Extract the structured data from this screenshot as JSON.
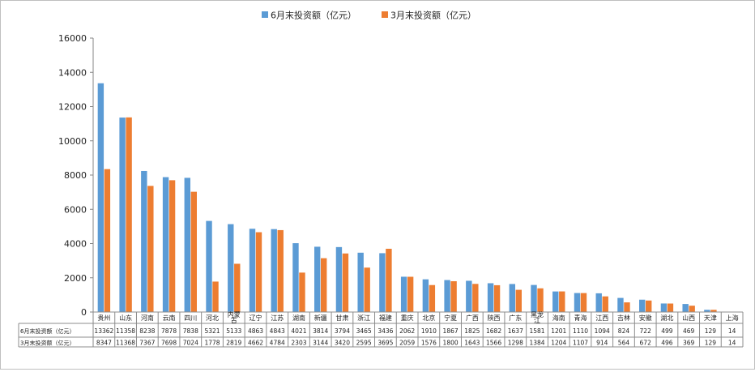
{
  "chart_data": {
    "type": "bar",
    "title": "",
    "xlabel": "",
    "ylabel": "",
    "ylim": [
      0,
      16000
    ],
    "yticks": [
      0,
      2000,
      4000,
      6000,
      8000,
      10000,
      12000,
      14000,
      16000
    ],
    "ytick_labels": [
      "0",
      "2000",
      "4000",
      "6000",
      "8000",
      "10000",
      "12000",
      "14000",
      "16000"
    ],
    "grid": false,
    "legend_position": "top",
    "has_data_table": true,
    "categories": [
      [
        "贵州"
      ],
      [
        "山东"
      ],
      [
        "河南"
      ],
      [
        "云南"
      ],
      [
        "四川"
      ],
      [
        "河北"
      ],
      [
        "内蒙",
        "古"
      ],
      [
        "辽宁"
      ],
      [
        "江苏"
      ],
      [
        "湖南"
      ],
      [
        "新疆"
      ],
      [
        "甘肃"
      ],
      [
        "浙江"
      ],
      [
        "福建"
      ],
      [
        "重庆"
      ],
      [
        "北京"
      ],
      [
        "宁夏"
      ],
      [
        "广西"
      ],
      [
        "陕西"
      ],
      [
        "广东"
      ],
      [
        "黑龙",
        "江"
      ],
      [
        "海南"
      ],
      [
        "青海"
      ],
      [
        "江西"
      ],
      [
        "吉林"
      ],
      [
        "安徽"
      ],
      [
        "湖北"
      ],
      [
        "山西"
      ],
      [
        "天津"
      ],
      [
        "上海"
      ]
    ],
    "series": [
      {
        "name": "6月末投资额（亿元）",
        "color": "#5b9bd5",
        "values": [
          13362,
          11358,
          8238,
          7878,
          7838,
          5321,
          5133,
          4863,
          4843,
          4021,
          3814,
          3794,
          3465,
          3436,
          2062,
          1910,
          1867,
          1825,
          1682,
          1637,
          1581,
          1201,
          1110,
          1094,
          824,
          722,
          499,
          469,
          129,
          14
        ]
      },
      {
        "name": "3月末投资额（亿元）",
        "color": "#ed7d31",
        "values": [
          8347,
          11368,
          7367,
          7698,
          7024,
          1778,
          2819,
          4662,
          4784,
          2303,
          3144,
          3420,
          2595,
          3695,
          2059,
          1576,
          1800,
          1643,
          1566,
          1298,
          1384,
          1204,
          1107,
          914,
          564,
          672,
          496,
          369,
          129,
          14
        ]
      }
    ]
  }
}
